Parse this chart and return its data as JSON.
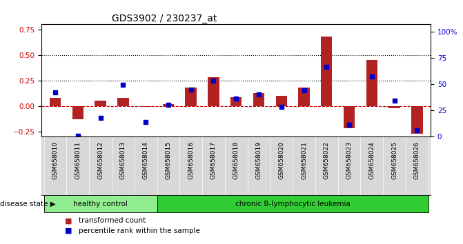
{
  "title": "GDS3902 / 230237_at",
  "samples": [
    "GSM658010",
    "GSM658011",
    "GSM658012",
    "GSM658013",
    "GSM658014",
    "GSM658015",
    "GSM658016",
    "GSM658017",
    "GSM658018",
    "GSM658019",
    "GSM658020",
    "GSM658021",
    "GSM658022",
    "GSM658023",
    "GSM658024",
    "GSM658025",
    "GSM658026"
  ],
  "bar_values": [
    0.08,
    -0.13,
    0.05,
    0.08,
    -0.01,
    0.02,
    0.18,
    0.28,
    0.09,
    0.13,
    0.1,
    0.18,
    0.68,
    -0.22,
    0.45,
    -0.02,
    -0.27
  ],
  "dot_values": [
    42,
    1,
    18,
    49,
    14,
    30,
    45,
    53,
    36,
    40,
    28,
    44,
    66,
    11,
    57,
    34,
    6
  ],
  "bar_color": "#B22222",
  "dot_color": "#0000CD",
  "ylim_left": [
    -0.3,
    0.8
  ],
  "ylim_right": [
    0,
    106.67
  ],
  "yticks_left": [
    -0.25,
    0.0,
    0.25,
    0.5,
    0.75
  ],
  "yticks_right": [
    0,
    25,
    50,
    75,
    100
  ],
  "ytick_labels_right": [
    "0",
    "25",
    "50",
    "75",
    "100%"
  ],
  "healthy_count": 5,
  "disease_state_label": "disease state",
  "group1_label": "healthy control",
  "group2_label": "chronic B-lymphocytic leukemia",
  "group1_color": "#90EE90",
  "group2_color": "#32CD32",
  "legend_bar": "transformed count",
  "legend_dot": "percentile rank within the sample",
  "background_plot": "#FFFFFF",
  "tick_label_color_left": "#CC0000",
  "tick_label_color_right": "#0000CD",
  "bar_width": 0.5
}
